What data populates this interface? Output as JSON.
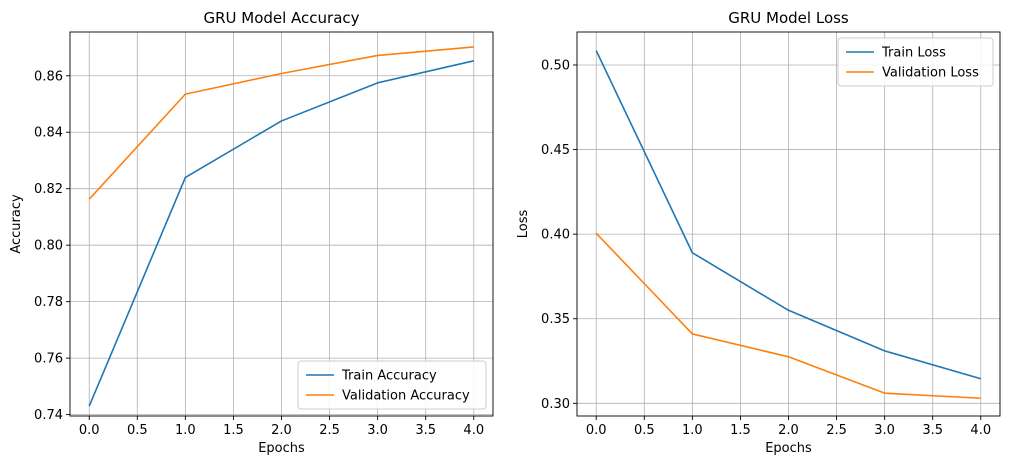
{
  "chart_data": [
    {
      "type": "line",
      "title": "GRU Model Accuracy",
      "xlabel": "Epochs",
      "ylabel": "Accuracy",
      "x": [
        0,
        1,
        2,
        3,
        4
      ],
      "xlim": [
        -0.2,
        4.2
      ],
      "ylim": [
        0.7395,
        0.8755
      ],
      "xticks": [
        "0.0",
        "0.5",
        "1.0",
        "1.5",
        "2.0",
        "2.5",
        "3.0",
        "3.5",
        "4.0"
      ],
      "yticks": [
        "0.74",
        "0.76",
        "0.78",
        "0.80",
        "0.82",
        "0.84",
        "0.86"
      ],
      "grid": true,
      "legend_position": "lower-right",
      "series": [
        {
          "name": "Train Accuracy",
          "color": "#1f77b4",
          "values": [
            0.743,
            0.824,
            0.844,
            0.8575,
            0.8653
          ]
        },
        {
          "name": "Validation Accuracy",
          "color": "#ff7f0e",
          "values": [
            0.8163,
            0.8535,
            0.8608,
            0.8672,
            0.8702
          ]
        }
      ]
    },
    {
      "type": "line",
      "title": "GRU Model Loss",
      "xlabel": "Epochs",
      "ylabel": "Loss",
      "x": [
        0,
        1,
        2,
        3,
        4
      ],
      "xlim": [
        -0.2,
        4.2
      ],
      "ylim": [
        0.2925,
        0.5195
      ],
      "xticks": [
        "0.0",
        "0.5",
        "1.0",
        "1.5",
        "2.0",
        "2.5",
        "3.0",
        "3.5",
        "4.0"
      ],
      "yticks": [
        "0.30",
        "0.35",
        "0.40",
        "0.45",
        "0.50"
      ],
      "grid": true,
      "legend_position": "upper-right",
      "series": [
        {
          "name": "Train Loss",
          "color": "#1f77b4",
          "values": [
            0.5085,
            0.389,
            0.355,
            0.331,
            0.3145
          ]
        },
        {
          "name": "Validation Loss",
          "color": "#ff7f0e",
          "values": [
            0.4005,
            0.341,
            0.3275,
            0.306,
            0.303
          ]
        }
      ]
    }
  ]
}
